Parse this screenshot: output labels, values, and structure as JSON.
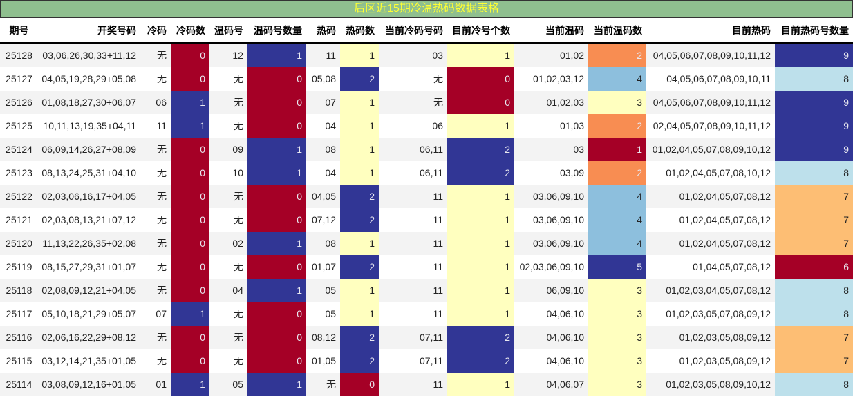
{
  "title": "后区近15期冷温热码数据表格",
  "colors": {
    "red": "#a50026",
    "blue": "#313695",
    "yellow": "#ffffbf",
    "orange": "#f88d52",
    "lightblue": "#8dbfdd",
    "palecyan": "#bde0eb",
    "peach": "#fdbe74",
    "title_bg": "#8fbf8f",
    "title_text": "#ffff33"
  },
  "columns": [
    "期号",
    "开奖号码",
    "冷码",
    "冷码数",
    "温码号",
    "温码号数量",
    "热码",
    "热码数",
    "当前冷码号码",
    "目前冷号个数",
    "当前温码",
    "当前温码数",
    "目前热码",
    "目前热码号数量"
  ],
  "rows": [
    [
      "25128",
      "03,06,26,30,33+11,12",
      "无",
      "0",
      "12",
      "1",
      "11",
      "1",
      "03",
      "1",
      "01,02",
      "2",
      "04,05,06,07,08,09,10,11,12",
      "9"
    ],
    [
      "25127",
      "04,05,19,28,29+05,08",
      "无",
      "0",
      "无",
      "0",
      "05,08",
      "2",
      "无",
      "0",
      "01,02,03,12",
      "4",
      "04,05,06,07,08,09,10,11",
      "8"
    ],
    [
      "25126",
      "01,08,18,27,30+06,07",
      "06",
      "1",
      "无",
      "0",
      "07",
      "1",
      "无",
      "0",
      "01,02,03",
      "3",
      "04,05,06,07,08,09,10,11,12",
      "9"
    ],
    [
      "25125",
      "10,11,13,19,35+04,11",
      "11",
      "1",
      "无",
      "0",
      "04",
      "1",
      "06",
      "1",
      "01,03",
      "2",
      "02,04,05,07,08,09,10,11,12",
      "9"
    ],
    [
      "25124",
      "06,09,14,26,27+08,09",
      "无",
      "0",
      "09",
      "1",
      "08",
      "1",
      "06,11",
      "2",
      "03",
      "1",
      "01,02,04,05,07,08,09,10,12",
      "9"
    ],
    [
      "25123",
      "08,13,24,25,31+04,10",
      "无",
      "0",
      "10",
      "1",
      "04",
      "1",
      "06,11",
      "2",
      "03,09",
      "2",
      "01,02,04,05,07,08,10,12",
      "8"
    ],
    [
      "25122",
      "02,03,06,16,17+04,05",
      "无",
      "0",
      "无",
      "0",
      "04,05",
      "2",
      "11",
      "1",
      "03,06,09,10",
      "4",
      "01,02,04,05,07,08,12",
      "7"
    ],
    [
      "25121",
      "02,03,08,13,21+07,12",
      "无",
      "0",
      "无",
      "0",
      "07,12",
      "2",
      "11",
      "1",
      "03,06,09,10",
      "4",
      "01,02,04,05,07,08,12",
      "7"
    ],
    [
      "25120",
      "11,13,22,26,35+02,08",
      "无",
      "0",
      "02",
      "1",
      "08",
      "1",
      "11",
      "1",
      "03,06,09,10",
      "4",
      "01,02,04,05,07,08,12",
      "7"
    ],
    [
      "25119",
      "08,15,27,29,31+01,07",
      "无",
      "0",
      "无",
      "0",
      "01,07",
      "2",
      "11",
      "1",
      "02,03,06,09,10",
      "5",
      "01,04,05,07,08,12",
      "6"
    ],
    [
      "25118",
      "02,08,09,12,21+04,05",
      "无",
      "0",
      "04",
      "1",
      "05",
      "1",
      "11",
      "1",
      "06,09,10",
      "3",
      "01,02,03,04,05,07,08,12",
      "8"
    ],
    [
      "25117",
      "05,10,18,21,29+05,07",
      "07",
      "1",
      "无",
      "0",
      "05",
      "1",
      "11",
      "1",
      "04,06,10",
      "3",
      "01,02,03,05,07,08,09,12",
      "8"
    ],
    [
      "25116",
      "02,06,16,22,29+08,12",
      "无",
      "0",
      "无",
      "0",
      "08,12",
      "2",
      "07,11",
      "2",
      "04,06,10",
      "3",
      "01,02,03,05,08,09,12",
      "7"
    ],
    [
      "25115",
      "03,12,14,21,35+01,05",
      "无",
      "0",
      "无",
      "0",
      "01,05",
      "2",
      "07,11",
      "2",
      "04,06,10",
      "3",
      "01,02,03,05,08,09,12",
      "7"
    ],
    [
      "25114",
      "03,08,09,12,16+01,05",
      "01",
      "1",
      "05",
      "1",
      "无",
      "0",
      "11",
      "1",
      "04,06,07",
      "3",
      "01,02,03,05,08,09,10,12",
      "8"
    ]
  ]
}
